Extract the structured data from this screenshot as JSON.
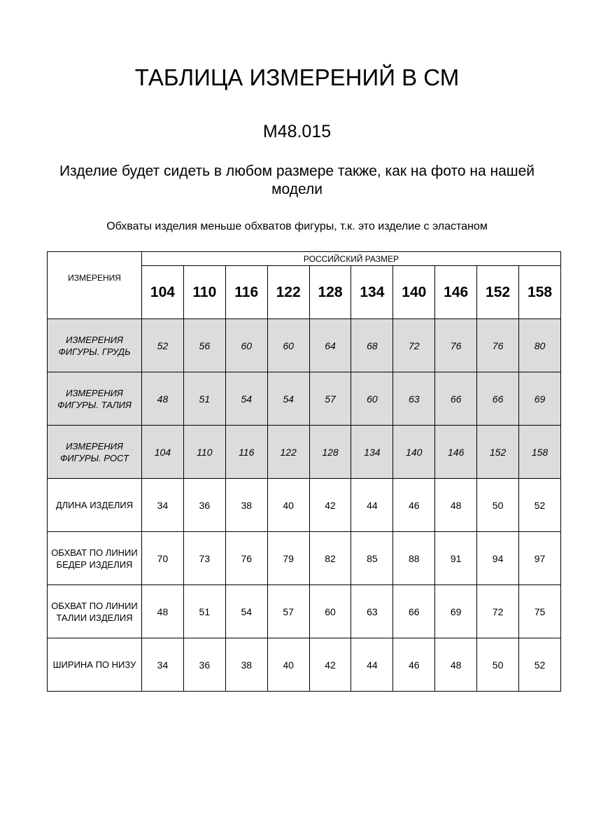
{
  "title": "ТАБЛИЦА ИЗМЕРЕНИЙ В СМ",
  "code": "М48.015",
  "note": "Изделие будет сидеть в любом размере также, как на фото на нашей модели",
  "subnote": "Обхваты изделия меньше обхватов фигуры, т.к. это изделие с эластаном",
  "table": {
    "corner": "ИЗМЕРЕНИЯ",
    "group_header": "РОССИЙСКИЙ РАЗМЕР",
    "sizes": [
      "104",
      "110",
      "116",
      "122",
      "128",
      "134",
      "140",
      "146",
      "152",
      "158"
    ],
    "rows": [
      {
        "label": "ИЗМЕРЕНИЯ ФИГУРЫ. ГРУДЬ",
        "values": [
          "52",
          "56",
          "60",
          "60",
          "64",
          "68",
          "72",
          "76",
          "76",
          "80"
        ]
      },
      {
        "label": "ИЗМЕРЕНИЯ ФИГУРЫ. ТАЛИЯ",
        "values": [
          "48",
          "51",
          "54",
          "54",
          "57",
          "60",
          "63",
          "66",
          "66",
          "69"
        ]
      },
      {
        "label": "ИЗМЕРЕНИЯ ФИГУРЫ. РОСТ",
        "values": [
          "104",
          "110",
          "116",
          "122",
          "128",
          "134",
          "140",
          "146",
          "152",
          "158"
        ]
      },
      {
        "label": "ДЛИНА ИЗДЕЛИЯ",
        "values": [
          "34",
          "36",
          "38",
          "40",
          "42",
          "44",
          "46",
          "48",
          "50",
          "52"
        ]
      },
      {
        "label": "ОБХВАТ ПО ЛИНИИ БЕДЕР ИЗДЕЛИЯ",
        "values": [
          "70",
          "73",
          "76",
          "79",
          "82",
          "85",
          "88",
          "91",
          "94",
          "97"
        ]
      },
      {
        "label": "ОБХВАТ ПО ЛИНИИ ТАЛИИ ИЗДЕЛИЯ",
        "values": [
          "48",
          "51",
          "54",
          "57",
          "60",
          "63",
          "66",
          "69",
          "72",
          "75"
        ]
      },
      {
        "label": "ШИРИНА ПО НИЗУ",
        "values": [
          "34",
          "36",
          "38",
          "40",
          "42",
          "44",
          "46",
          "48",
          "50",
          "52"
        ]
      }
    ],
    "shaded_rows": [
      0,
      1,
      2
    ],
    "shade_color": "#dcdcdc"
  }
}
